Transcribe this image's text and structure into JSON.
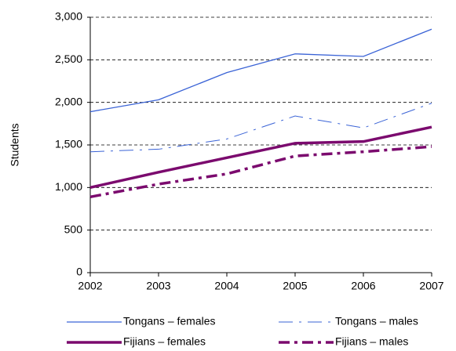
{
  "chart_data": {
    "type": "line",
    "y_label": "Students",
    "x": [
      2002,
      2003,
      2004,
      2005,
      2006,
      2007
    ],
    "xlim": [
      2002,
      2007
    ],
    "xticks": [
      2002,
      2003,
      2004,
      2005,
      2006,
      2007
    ],
    "ylim": [
      0,
      3000
    ],
    "yticks": [
      0,
      500,
      {
        "value": 1000,
        "label": "1,000"
      },
      {
        "value": 1500,
        "label": "1,500"
      },
      {
        "value": 2000,
        "label": "2,000"
      },
      {
        "value": 2500,
        "label": "2,500"
      },
      {
        "value": 3000,
        "label": "3,000"
      }
    ],
    "grid": true,
    "legend": "bottom",
    "series": [
      {
        "name": "Tongans – females",
        "color": "#3a63d6",
        "width": 1.3,
        "dash": "solid",
        "values": [
          1890,
          2030,
          2350,
          2570,
          2540,
          2860
        ]
      },
      {
        "name": "Tongans – males",
        "color": "#3a63d6",
        "width": 1,
        "dash": "dashdot",
        "values": [
          1420,
          1450,
          1570,
          1840,
          1700,
          1990
        ]
      },
      {
        "name": "Fijians – females",
        "color": "#7b0a6e",
        "width": 3.5,
        "dash": "solid",
        "values": [
          1000,
          1180,
          1350,
          1520,
          1540,
          1710
        ]
      },
      {
        "name": "Fijians – males",
        "color": "#7b0a6e",
        "width": 3.5,
        "dash": "dashdot",
        "values": [
          890,
          1040,
          1160,
          1370,
          1420,
          1480
        ]
      }
    ]
  }
}
